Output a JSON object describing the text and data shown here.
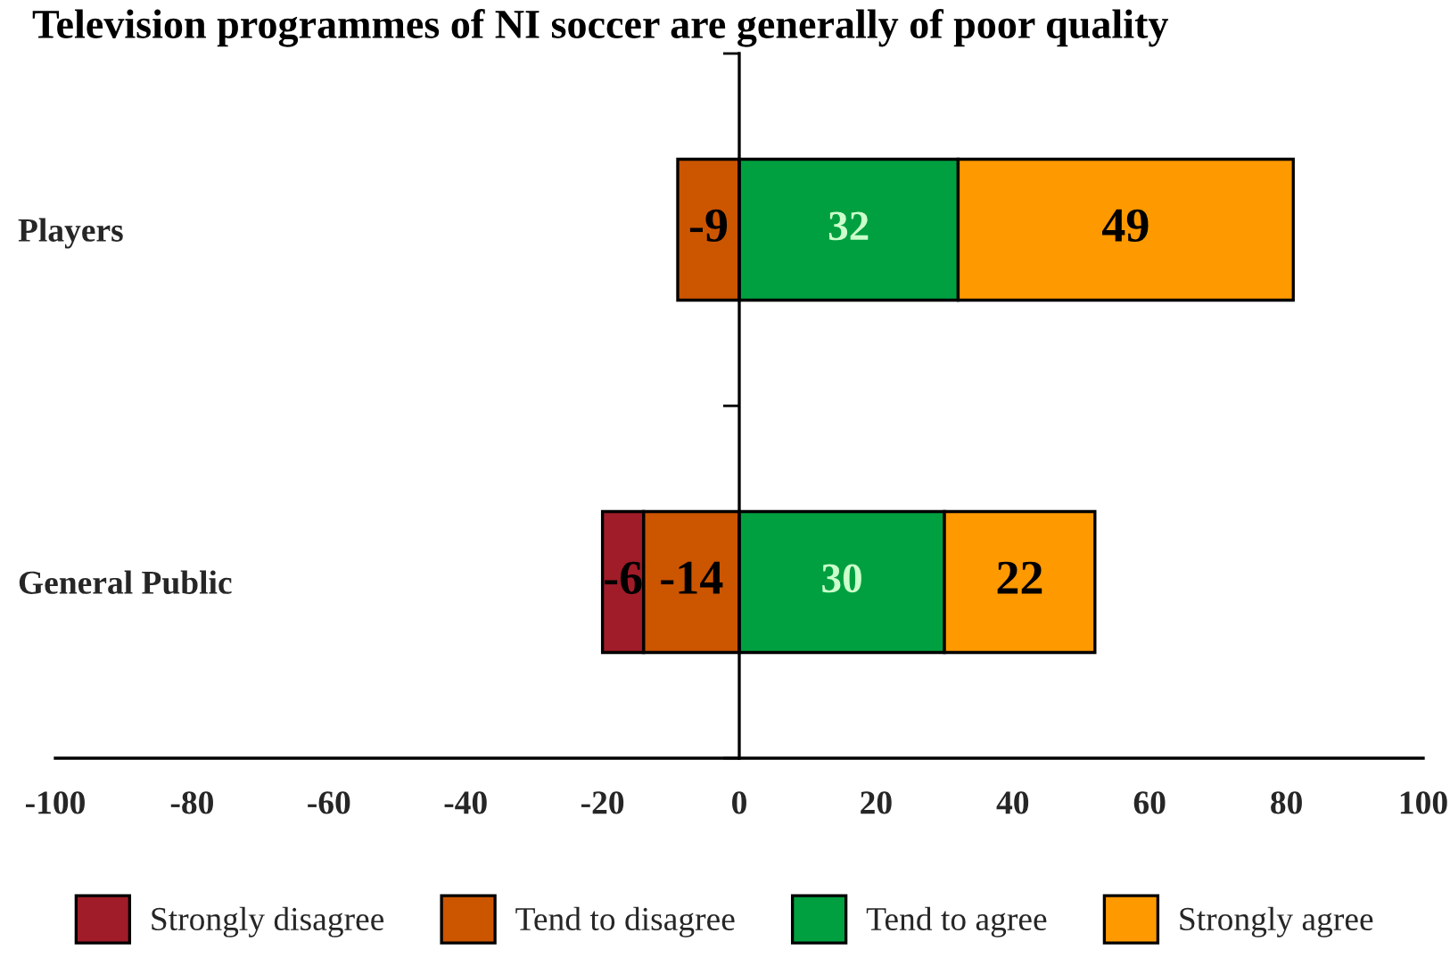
{
  "chart_data": {
    "type": "bar",
    "orientation": "horizontal",
    "stacked": true,
    "title": "Television programmes of NI soccer are generally of poor quality",
    "categories": [
      "Players",
      "General Public"
    ],
    "series": [
      {
        "name": "Tend to disagree",
        "color": "#cc5500",
        "values": [
          -9,
          -14
        ]
      },
      {
        "name": "Strongly disagree",
        "color": "#a01c28",
        "values": [
          null,
          -6
        ]
      },
      {
        "name": "Tend to agree",
        "color": "#00a040",
        "values": [
          32,
          30
        ]
      },
      {
        "name": "Strongly agree",
        "color": "#ff9900",
        "values": [
          49,
          22
        ]
      }
    ],
    "xlim": [
      -100,
      100
    ],
    "xticks": [
      -100,
      -80,
      -60,
      -40,
      -20,
      0,
      20,
      40,
      60,
      80,
      100
    ],
    "data_labels": true,
    "legend": "bottom"
  }
}
